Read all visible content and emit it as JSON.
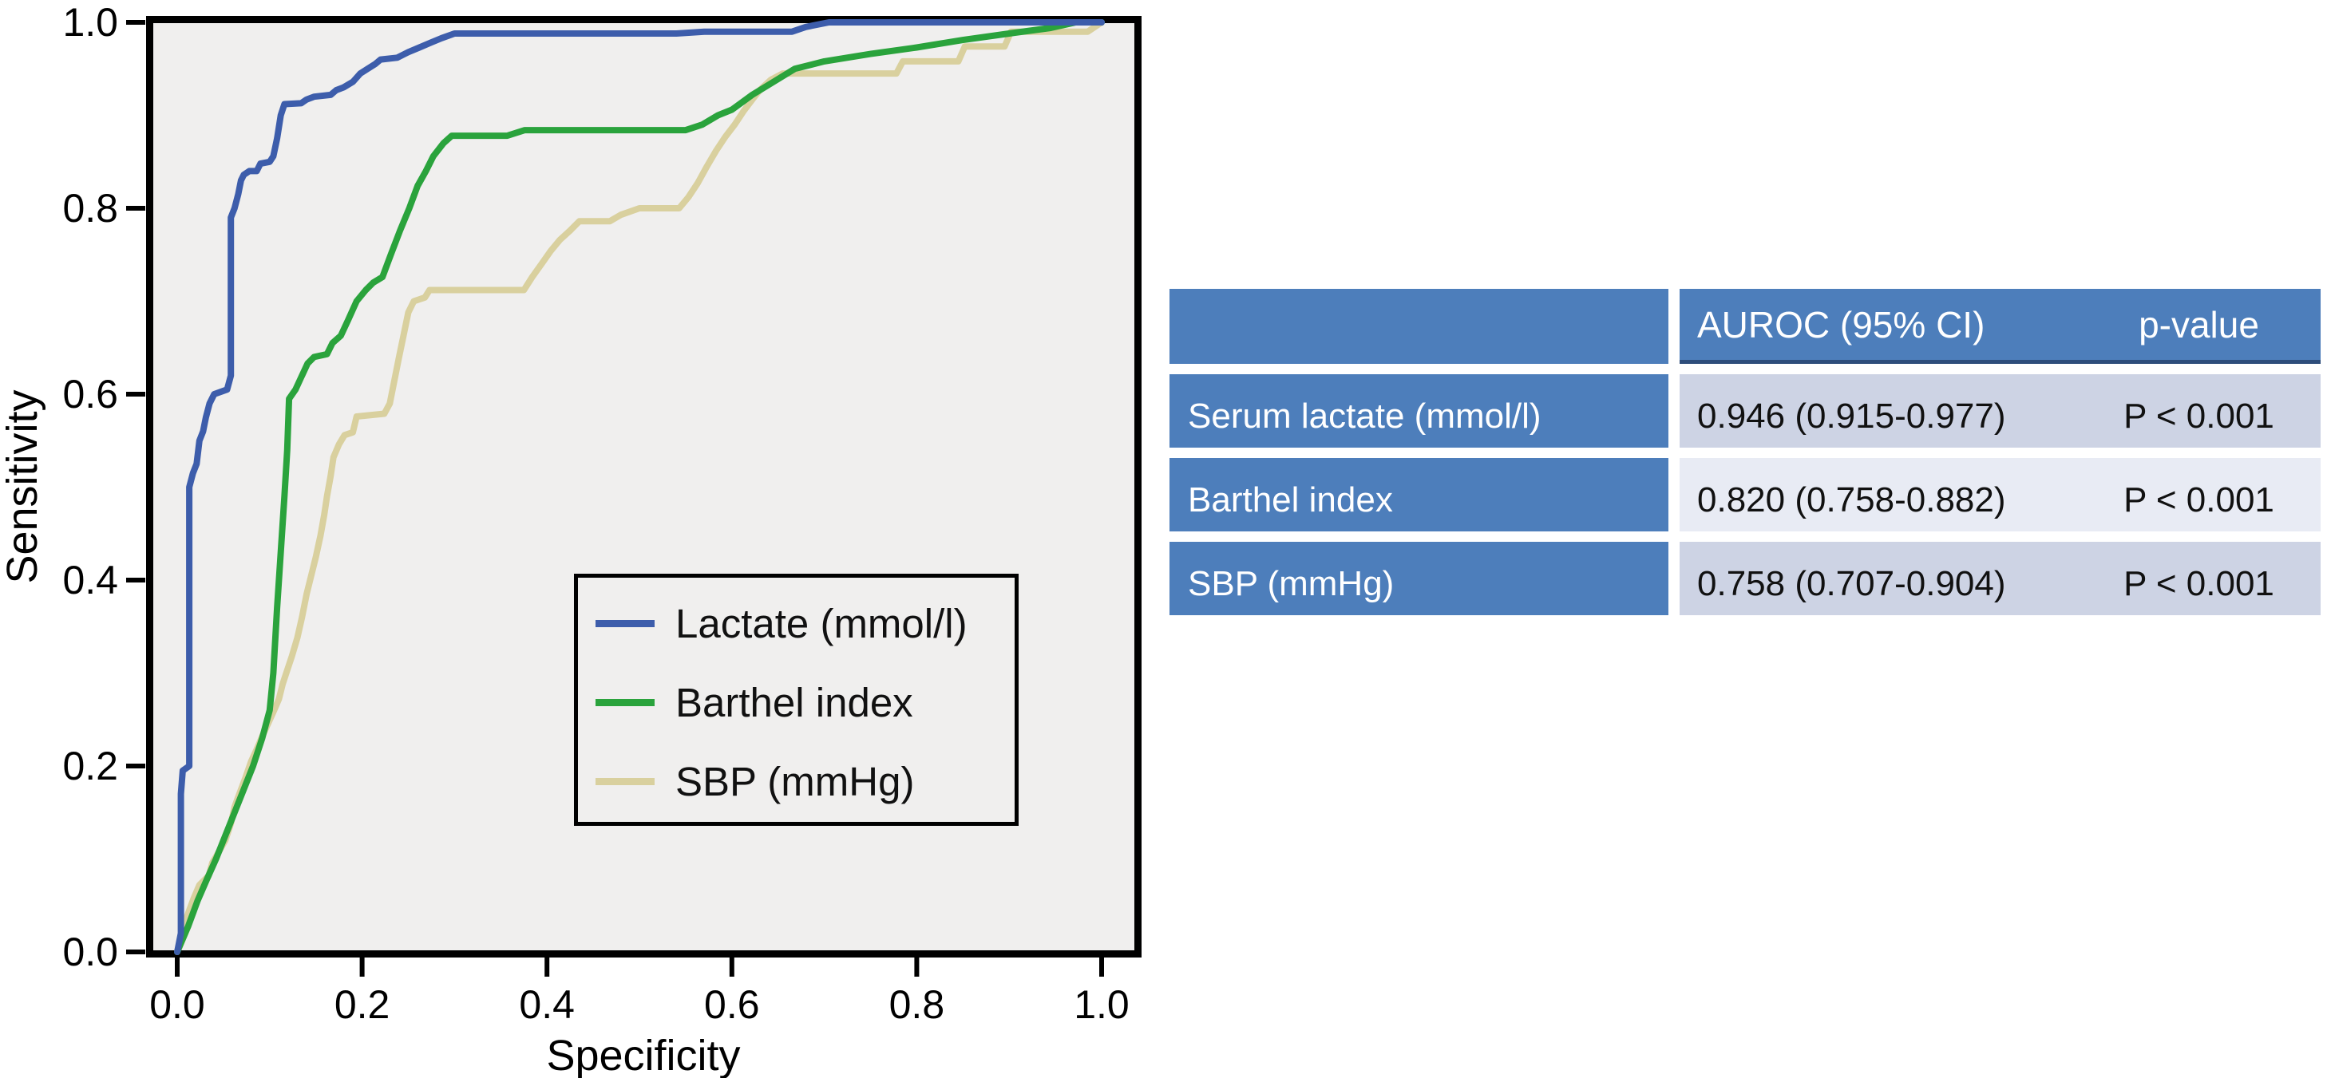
{
  "chart_data": {
    "type": "line",
    "subtype": "roc-step-curves",
    "title": "",
    "xlabel": "Specificity",
    "ylabel": "Sensitivity",
    "xlim": [
      0.0,
      1.0
    ],
    "ylim": [
      0.0,
      1.0
    ],
    "x_tick_labels": [
      "0.0",
      "0.2",
      "0.4",
      "0.6",
      "0.8",
      "1.0"
    ],
    "y_tick_labels": [
      "0.0",
      "0.2",
      "0.4",
      "0.6",
      "0.8",
      "1.0"
    ],
    "grid": false,
    "plot_background": "#f0efee",
    "legend_position": "inside lower-right of plot",
    "series": [
      {
        "name": "Lactate (mmol/l)",
        "color": "#3d5dab",
        "points": [
          [
            0,
            0
          ],
          [
            0.004,
            0.02
          ],
          [
            0.004,
            0.17
          ],
          [
            0.006,
            0.195
          ],
          [
            0.013,
            0.2
          ],
          [
            0.013,
            0.5
          ],
          [
            0.017,
            0.515
          ],
          [
            0.021,
            0.525
          ],
          [
            0.024,
            0.55
          ],
          [
            0.028,
            0.56
          ],
          [
            0.031,
            0.575
          ],
          [
            0.035,
            0.59
          ],
          [
            0.04,
            0.6
          ],
          [
            0.054,
            0.605
          ],
          [
            0.058,
            0.62
          ],
          [
            0.058,
            0.79
          ],
          [
            0.062,
            0.8
          ],
          [
            0.066,
            0.815
          ],
          [
            0.069,
            0.83
          ],
          [
            0.072,
            0.836
          ],
          [
            0.078,
            0.84
          ],
          [
            0.086,
            0.84
          ],
          [
            0.09,
            0.848
          ],
          [
            0.1,
            0.85
          ],
          [
            0.104,
            0.856
          ],
          [
            0.108,
            0.875
          ],
          [
            0.112,
            0.9
          ],
          [
            0.116,
            0.912
          ],
          [
            0.134,
            0.913
          ],
          [
            0.14,
            0.917
          ],
          [
            0.148,
            0.92
          ],
          [
            0.166,
            0.922
          ],
          [
            0.172,
            0.927
          ],
          [
            0.18,
            0.93
          ],
          [
            0.19,
            0.936
          ],
          [
            0.198,
            0.945
          ],
          [
            0.206,
            0.95
          ],
          [
            0.214,
            0.955
          ],
          [
            0.22,
            0.96
          ],
          [
            0.238,
            0.962
          ],
          [
            0.25,
            0.968
          ],
          [
            0.262,
            0.973
          ],
          [
            0.274,
            0.978
          ],
          [
            0.286,
            0.983
          ],
          [
            0.3,
            0.988
          ],
          [
            0.54,
            0.988
          ],
          [
            0.57,
            0.99
          ],
          [
            0.665,
            0.99
          ],
          [
            0.68,
            0.995
          ],
          [
            0.705,
            1.0
          ],
          [
            1.0,
            1.0
          ]
        ]
      },
      {
        "name": "Barthel index",
        "color": "#2aa33c",
        "points": [
          [
            0,
            0
          ],
          [
            0.012,
            0.028
          ],
          [
            0.022,
            0.055
          ],
          [
            0.032,
            0.078
          ],
          [
            0.042,
            0.1
          ],
          [
            0.052,
            0.125
          ],
          [
            0.062,
            0.15
          ],
          [
            0.072,
            0.175
          ],
          [
            0.082,
            0.2
          ],
          [
            0.092,
            0.23
          ],
          [
            0.1,
            0.26
          ],
          [
            0.104,
            0.3
          ],
          [
            0.108,
            0.37
          ],
          [
            0.112,
            0.43
          ],
          [
            0.116,
            0.49
          ],
          [
            0.119,
            0.54
          ],
          [
            0.121,
            0.595
          ],
          [
            0.128,
            0.605
          ],
          [
            0.134,
            0.618
          ],
          [
            0.141,
            0.633
          ],
          [
            0.148,
            0.64
          ],
          [
            0.162,
            0.643
          ],
          [
            0.168,
            0.655
          ],
          [
            0.177,
            0.663
          ],
          [
            0.185,
            0.68
          ],
          [
            0.194,
            0.7
          ],
          [
            0.204,
            0.712
          ],
          [
            0.212,
            0.72
          ],
          [
            0.222,
            0.726
          ],
          [
            0.231,
            0.75
          ],
          [
            0.241,
            0.776
          ],
          [
            0.251,
            0.8
          ],
          [
            0.26,
            0.824
          ],
          [
            0.269,
            0.84
          ],
          [
            0.277,
            0.856
          ],
          [
            0.288,
            0.87
          ],
          [
            0.297,
            0.878
          ],
          [
            0.357,
            0.878
          ],
          [
            0.376,
            0.884
          ],
          [
            0.55,
            0.884
          ],
          [
            0.568,
            0.89
          ],
          [
            0.585,
            0.9
          ],
          [
            0.6,
            0.906
          ],
          [
            0.622,
            0.922
          ],
          [
            0.645,
            0.936
          ],
          [
            0.668,
            0.95
          ],
          [
            0.7,
            0.958
          ],
          [
            0.75,
            0.966
          ],
          [
            0.8,
            0.973
          ],
          [
            0.85,
            0.981
          ],
          [
            0.9,
            0.988
          ],
          [
            0.945,
            0.994
          ],
          [
            0.972,
            1.0
          ],
          [
            1.0,
            1.0
          ]
        ]
      },
      {
        "name": "SBP (mmHg)",
        "color": "#d9d09e",
        "points": [
          [
            0,
            0
          ],
          [
            0.006,
            0.025
          ],
          [
            0.012,
            0.042
          ],
          [
            0.018,
            0.058
          ],
          [
            0.024,
            0.072
          ],
          [
            0.034,
            0.082
          ],
          [
            0.038,
            0.096
          ],
          [
            0.044,
            0.106
          ],
          [
            0.052,
            0.12
          ],
          [
            0.058,
            0.138
          ],
          [
            0.062,
            0.156
          ],
          [
            0.068,
            0.172
          ],
          [
            0.074,
            0.188
          ],
          [
            0.08,
            0.205
          ],
          [
            0.086,
            0.218
          ],
          [
            0.092,
            0.232
          ],
          [
            0.098,
            0.245
          ],
          [
            0.104,
            0.258
          ],
          [
            0.11,
            0.272
          ],
          [
            0.114,
            0.288
          ],
          [
            0.118,
            0.3
          ],
          [
            0.124,
            0.318
          ],
          [
            0.13,
            0.338
          ],
          [
            0.135,
            0.36
          ],
          [
            0.14,
            0.385
          ],
          [
            0.145,
            0.405
          ],
          [
            0.15,
            0.425
          ],
          [
            0.155,
            0.448
          ],
          [
            0.159,
            0.47
          ],
          [
            0.162,
            0.49
          ],
          [
            0.166,
            0.512
          ],
          [
            0.169,
            0.532
          ],
          [
            0.175,
            0.546
          ],
          [
            0.181,
            0.556
          ],
          [
            0.19,
            0.559
          ],
          [
            0.194,
            0.576
          ],
          [
            0.224,
            0.579
          ],
          [
            0.23,
            0.59
          ],
          [
            0.235,
            0.615
          ],
          [
            0.24,
            0.64
          ],
          [
            0.245,
            0.664
          ],
          [
            0.25,
            0.688
          ],
          [
            0.256,
            0.7
          ],
          [
            0.268,
            0.704
          ],
          [
            0.273,
            0.712
          ],
          [
            0.375,
            0.712
          ],
          [
            0.384,
            0.726
          ],
          [
            0.394,
            0.74
          ],
          [
            0.404,
            0.754
          ],
          [
            0.414,
            0.766
          ],
          [
            0.425,
            0.776
          ],
          [
            0.435,
            0.786
          ],
          [
            0.468,
            0.786
          ],
          [
            0.48,
            0.793
          ],
          [
            0.5,
            0.8
          ],
          [
            0.543,
            0.8
          ],
          [
            0.553,
            0.812
          ],
          [
            0.563,
            0.827
          ],
          [
            0.573,
            0.845
          ],
          [
            0.583,
            0.862
          ],
          [
            0.593,
            0.877
          ],
          [
            0.603,
            0.89
          ],
          [
            0.613,
            0.905
          ],
          [
            0.623,
            0.918
          ],
          [
            0.631,
            0.928
          ],
          [
            0.642,
            0.938
          ],
          [
            0.655,
            0.945
          ],
          [
            0.778,
            0.945
          ],
          [
            0.785,
            0.958
          ],
          [
            0.845,
            0.958
          ],
          [
            0.852,
            0.974
          ],
          [
            0.895,
            0.974
          ],
          [
            0.902,
            0.99
          ],
          [
            0.985,
            0.99
          ],
          [
            1.0,
            1.0
          ]
        ]
      }
    ]
  },
  "legend": {
    "entries": [
      "Lactate (mmol/l)",
      "Barthel index",
      "SBP (mmHg)"
    ]
  },
  "table": {
    "columns": [
      "",
      "AUROC (95% CI)",
      "p-value"
    ],
    "rows": [
      {
        "label": "Serum lactate (mmol/l)",
        "auroc": "0.946 (0.915-0.977)",
        "p": "P < 0.001"
      },
      {
        "label": "Barthel index",
        "auroc": "0.820 (0.758-0.882)",
        "p": "P < 0.001"
      },
      {
        "label": "SBP (mmHg)",
        "auroc": "0.758 (0.707-0.904)",
        "p": "P < 0.001"
      }
    ],
    "colors": {
      "header_blue": "#4d7ebb",
      "header_underline": "#2e4d7b",
      "row_shade_a": "#cdd3e4",
      "row_shade_b": "#e8ebf4",
      "text": "#111111",
      "gap_white": "#ffffff"
    }
  }
}
